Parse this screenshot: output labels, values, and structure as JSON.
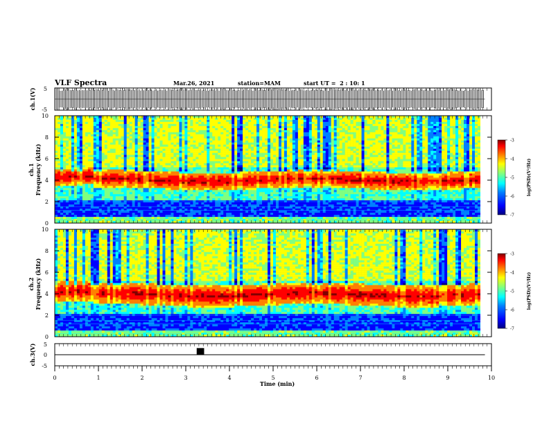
{
  "header": {
    "title": "VLF Spectra",
    "date": "Mar.26, 2021",
    "station": "station=MAM",
    "start_ut": "start UT =  2 : 10: 1"
  },
  "chart_data": [
    {
      "type": "line",
      "name": "ch1-waveform",
      "ylabel": "ch.1(V)",
      "ylim": [
        -5,
        5
      ],
      "yticks": [
        "5",
        "-5"
      ],
      "xlim": [
        0,
        10
      ],
      "description_values": {
        "amplitude_min": -5,
        "amplitude_max": 5,
        "baseline": 0
      }
    },
    {
      "type": "heatmap",
      "name": "ch1-spectrogram",
      "ylabel_line1": "ch.1",
      "ylabel_line2": "Frequency (kHz)",
      "ylim": [
        0,
        10
      ],
      "yticks": [
        "0",
        "2",
        "4",
        "6",
        "8",
        "10"
      ],
      "xlim": [
        0,
        10
      ],
      "band_center_khz": 4.0,
      "band_low_khz": 3.2,
      "band_high_khz": 4.8,
      "colorbar": {
        "label": "log(PSD)(V²/Hz)",
        "ticks": [
          "-3",
          "-4",
          "-5",
          "-6",
          "-7"
        ],
        "range": [
          -7,
          -3
        ]
      }
    },
    {
      "type": "heatmap",
      "name": "ch2-spectrogram",
      "ylabel_line1": "ch.2",
      "ylabel_line2": "Frequency (kHz)",
      "ylim": [
        0,
        10
      ],
      "yticks": [
        "0",
        "2",
        "4",
        "6",
        "8",
        "10"
      ],
      "xlim": [
        0,
        10
      ],
      "band_center_khz": 3.9,
      "band_low_khz": 3.0,
      "band_high_khz": 5.0,
      "colorbar": {
        "label": "log(PSD)(V²/Hz)",
        "ticks": [
          "-3",
          "-4",
          "-5",
          "-6",
          "-7"
        ],
        "range": [
          -7,
          -3
        ]
      }
    },
    {
      "type": "line",
      "name": "ch3-signal",
      "ylabel": "ch.3(V)",
      "ylim": [
        -5,
        5
      ],
      "yticks": [
        "5",
        "0",
        "-5"
      ],
      "xlim": [
        0,
        10
      ],
      "baseline": 0,
      "pulse": {
        "start_min": 3.25,
        "end_min": 3.42,
        "high": 3
      }
    }
  ],
  "xaxis": {
    "label": "Time (min)",
    "ticks": [
      "0",
      "1",
      "2",
      "3",
      "4",
      "5",
      "6",
      "7",
      "8",
      "9",
      "10"
    ],
    "range": [
      0,
      10
    ]
  },
  "colors": {
    "colormap": [
      "#00007f",
      "#0000ff",
      "#0080ff",
      "#00ffff",
      "#80ff80",
      "#ffff00",
      "#ff8000",
      "#ff0000",
      "#7f0000"
    ]
  }
}
